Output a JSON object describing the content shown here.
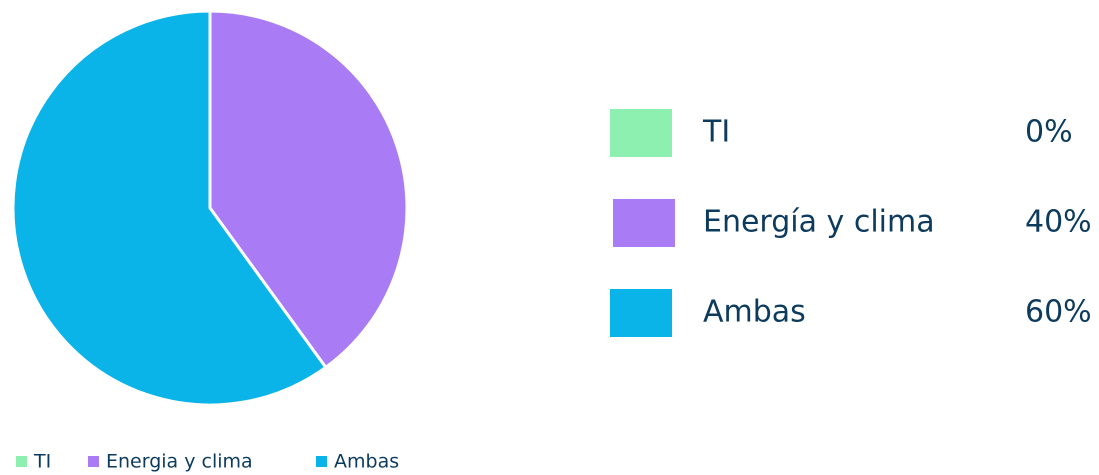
{
  "chart_data": {
    "type": "pie",
    "categories": [
      "TI",
      "Energía y clima",
      "Ambas"
    ],
    "values": [
      0,
      40,
      60
    ],
    "value_labels": [
      "0%",
      "40%",
      "60%"
    ],
    "colors": [
      "#8ef0b0",
      "#a97bf5",
      "#0ab4e8"
    ],
    "legend": [
      "TI",
      "Energia y clima",
      "Ambas"
    ]
  }
}
